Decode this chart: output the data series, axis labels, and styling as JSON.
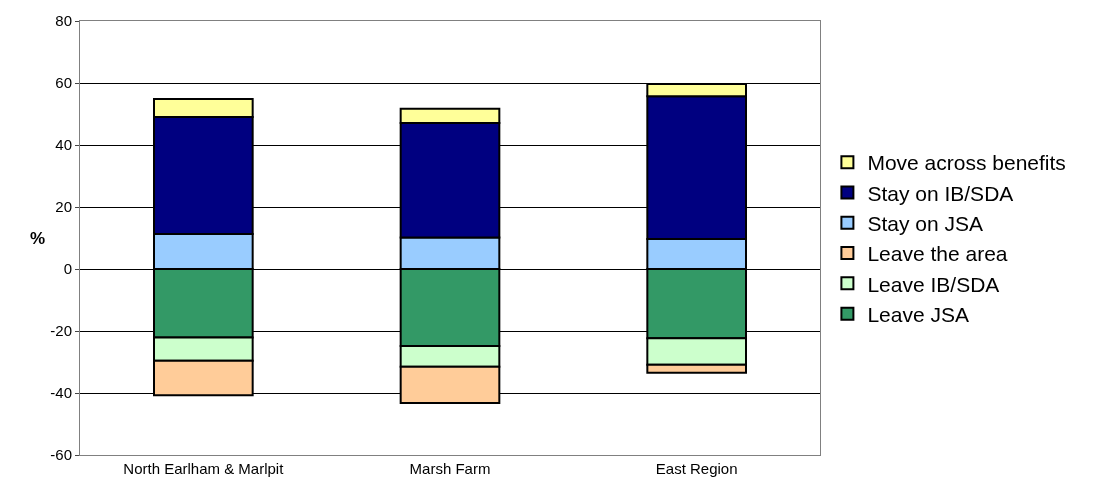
{
  "chart_data": {
    "type": "bar",
    "stacked": true,
    "ylabel": "%",
    "categories": [
      "North Earlham & Marlpit",
      "Marsh Farm",
      "East Region"
    ],
    "series": [
      {
        "name": "Leave JSA",
        "color": "#339966",
        "values": [
          -22.1,
          -24.8,
          -22.3
        ]
      },
      {
        "name": "Leave IB/SDA",
        "color": "#ccffcc",
        "values": [
          -7.5,
          -6.7,
          -8.6
        ]
      },
      {
        "name": "Leave the area",
        "color": "#ffcc99",
        "values": [
          -11.1,
          -11.7,
          -2.6
        ]
      },
      {
        "name": "Stay on JSA",
        "color": "#99ccff",
        "values": [
          11.3,
          10.2,
          9.7
        ]
      },
      {
        "name": "Stay on IB/SDA",
        "color": "#000080",
        "values": [
          37.7,
          36.9,
          46.0
        ]
      },
      {
        "name": "Move across benefits",
        "color": "#ffff99",
        "values": [
          5.8,
          4.6,
          4.0
        ]
      }
    ],
    "ylim": [
      -60,
      80
    ],
    "yticks": [
      -60,
      -40,
      -20,
      0,
      20,
      40,
      60,
      80
    ],
    "grid": "y",
    "legend": "right"
  }
}
